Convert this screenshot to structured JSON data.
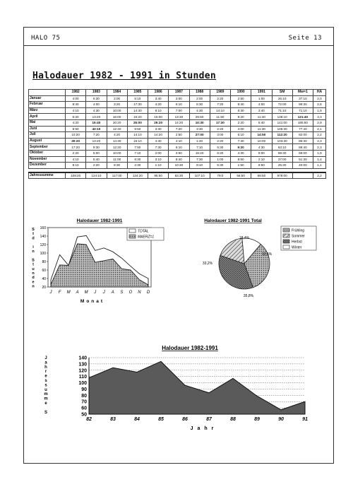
{
  "header": {
    "left": "HALO 75",
    "right": "Seite 13"
  },
  "title": "Halodauer 1982 - 1991 in Stunden",
  "table": {
    "columns": [
      "",
      "1982",
      "1983",
      "1984",
      "1985",
      "1986",
      "1987",
      "1988",
      "1989",
      "1990",
      "1991",
      "SM",
      "Mw=1",
      "HA"
    ],
    "rows": [
      [
        "Januar",
        "4:00",
        "6:30",
        "2:00",
        "5:10",
        "3:40",
        "3:00",
        "2:00",
        "2:20",
        "2:50",
        "1:00",
        "26:10",
        "37:10",
        "2,0"
      ],
      [
        "Februar",
        "9:40",
        "4:00",
        "3:20",
        "17:30",
        "4:20",
        "6:10",
        "5:30",
        "7:20",
        "8:40",
        "4:00",
        "72:00",
        "95:30",
        "2,6"
      ],
      [
        "März",
        "4:10",
        "4:30",
        "10:00",
        "14:30",
        "8:10",
        "7:00",
        "4:30",
        "14:10",
        "8:30",
        "3:40",
        "71:10",
        "71:10",
        "1,9"
      ],
      [
        "April",
        "6:20",
        "13:20",
        "16:00",
        "15:20",
        "16:00",
        "13:30",
        "25:50",
        "11:50",
        "8:20",
        "11:40",
        "138:10",
        "121:40",
        "3,3"
      ],
      [
        "Mai",
        "4:20",
        "15:40",
        "20:20",
        "25:00",
        "25:20",
        "14:20",
        "10:30",
        "17:30",
        "2:20",
        "5:40",
        "141:00",
        "185:50",
        "2,9"
      ],
      [
        "Juni",
        "8:50",
        "43:10",
        "12:40",
        "9:50",
        "3:30",
        "7:20",
        "3:30",
        "2:20",
        "4:00",
        "11:30",
        "106:30",
        "77:40",
        "2,1"
      ],
      [
        "Juli",
        "10:20",
        "7:20",
        "4:20",
        "14:10",
        "14:20",
        "2:50",
        "27:00",
        "3:00",
        "6:10",
        "14:50",
        "112:20",
        "82:00",
        "2,2"
      ],
      [
        "August",
        "30:20",
        "13:20",
        "14:30",
        "15:10",
        "4:40",
        "4:10",
        "1:20",
        "2:20",
        "7:30",
        "10:00",
        "103:30",
        "85:30",
        "2,3"
      ],
      [
        "September",
        "17:20",
        "9:30",
        "12:20",
        "7:50",
        "7:30",
        "6:10",
        "7:10",
        "5:30",
        "9:20",
        "4:30",
        "63:10",
        "88:40",
        "2,3"
      ],
      [
        "Oktober",
        "2:20",
        "5:00",
        "10:00",
        "7:10",
        "2:00",
        "3:50",
        "16:20",
        "6:20",
        "4:30",
        "8:00",
        "59:30",
        "69:00",
        "1,8"
      ],
      [
        "November",
        "4:10",
        "5:40",
        "11:00",
        "8:30",
        "3:10",
        "8:40",
        "7:30",
        "1:00",
        "8:50",
        "2:10",
        "37:00",
        "51:30",
        "1,4"
      ],
      [
        "Dezember",
        "8:10",
        "2:20",
        "8:30",
        "2:30",
        "1:10",
        "10:30",
        "8:10",
        "5:30",
        "1:50",
        "8:50",
        "25:30",
        "40:00",
        "1,1"
      ]
    ],
    "sum_label": "Jahressumme",
    "sums": [
      "108:20",
      "124:10",
      "117:00",
      "134:20",
      "95:50",
      "83:30",
      "107:10",
      "79:0",
      "56:50",
      "69:50",
      "978:00",
      "",
      "2,2"
    ]
  },
  "chart_data": [
    {
      "type": "area",
      "title": "Halodauer 1982-1991",
      "xlabel": "Monat",
      "ylabel": "Std in Stunden",
      "ylabel_letters": [
        "S",
        "t",
        "d",
        "",
        "i",
        "n",
        "",
        "S",
        "t",
        "u",
        "n",
        "d",
        "e",
        "n"
      ],
      "categories": [
        "J",
        "F",
        "M",
        "A",
        "M",
        "J",
        "J",
        "A",
        "S",
        "O",
        "N",
        "D"
      ],
      "yticks": [
        20,
        40,
        60,
        80,
        100,
        120,
        140,
        160
      ],
      "ylim": [
        20,
        160
      ],
      "series": [
        {
          "name": "TOTAL",
          "values": [
            37,
            96,
            71,
            138,
            141,
            106,
            112,
            103,
            88,
            69,
            51,
            40
          ]
        },
        {
          "name": "MAERZ=1",
          "values": [
            26,
            72,
            71,
            122,
            120,
            78,
            82,
            86,
            63,
            60,
            37,
            25
          ]
        }
      ],
      "legend": "top-right"
    },
    {
      "type": "pie",
      "title": "Halodauer 1982-1991 Total",
      "slices": [
        {
          "name": "Frühling",
          "value": 33.2,
          "label": "33,2%"
        },
        {
          "name": "Sommer",
          "value": 18.4,
          "label": "18,4%"
        },
        {
          "name": "Herbst",
          "value": 35.8,
          "label": "35,8%"
        },
        {
          "name": "Winter",
          "value": 12.6,
          "label": "12,6%"
        }
      ],
      "legend": "right"
    },
    {
      "type": "area",
      "title": "Halodauer 1982-1991",
      "xlabel": "Jahr",
      "ylabel": "Jahressumme",
      "ylabel_letters": [
        "J",
        "a",
        "h",
        "r",
        "e",
        "s",
        "s",
        "u",
        "m",
        "m",
        "e",
        "",
        "S"
      ],
      "categories": [
        "82",
        "83",
        "84",
        "85",
        "86",
        "87",
        "88",
        "89",
        "90",
        "91"
      ],
      "yticks": [
        50,
        60,
        70,
        80,
        90,
        100,
        110,
        120,
        130,
        140
      ],
      "ylim": [
        50,
        140
      ],
      "values": [
        108,
        124,
        117,
        134,
        96,
        84,
        107,
        79,
        57,
        70
      ]
    }
  ]
}
